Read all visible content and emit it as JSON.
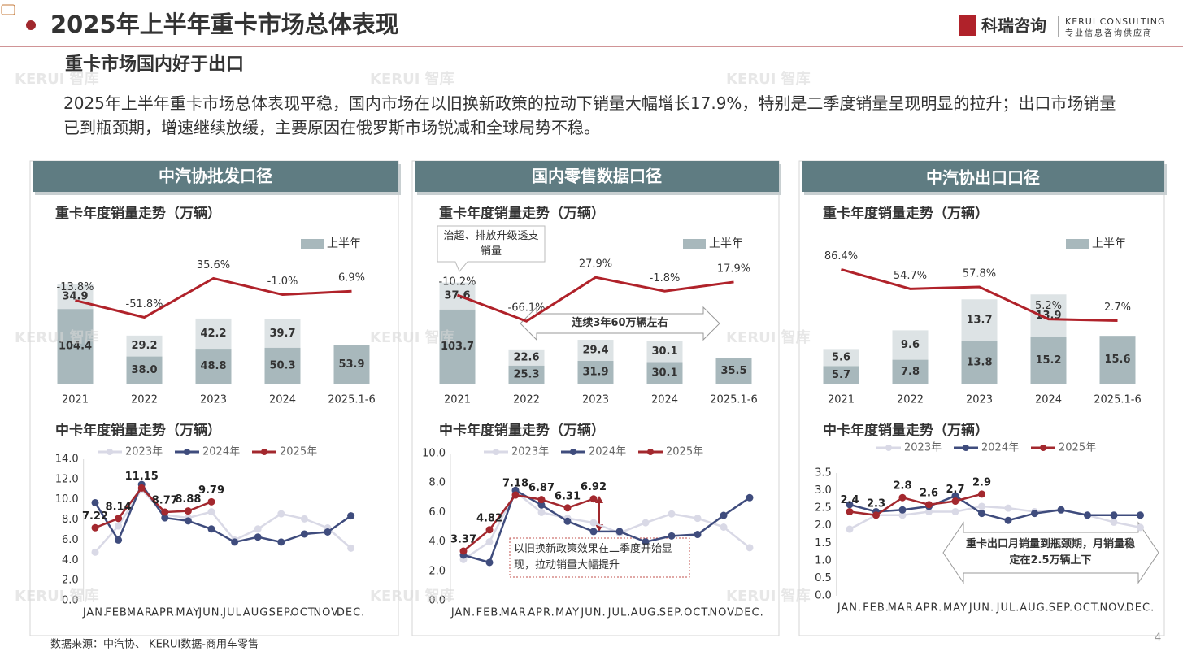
{
  "header": {
    "title": "2025年上半年重卡市场总体表现",
    "logo_cn": "科瑞咨询",
    "logo_en": "KERUI CONSULTING",
    "logo_tagline": "专业信息咨询供应商"
  },
  "subtitle": "重卡市场国内好于出口",
  "body": "2025年上半年重卡市场总体表现平稳，国内市场在以旧换新政策的拉动下销量大幅增长17.9%，特别是二季度销量呈现明显的拉升；出口市场销量已到瓶颈期，增速继续放缓，主要原因在俄罗斯市场锐减和全球局势不稳。",
  "panels": [
    "中汽协批发口径",
    "国内零售数据口径",
    "中汽协出口口径"
  ],
  "watermark": "KERUI 智库",
  "source": "数据来源：中汽协、 KERUI数据-商用车零售",
  "page_number": "4",
  "chart_data": [
    {
      "type": "bar",
      "stacked": true,
      "title": "重卡年度销量走势（万辆）",
      "categories": [
        "2021",
        "2022",
        "2023",
        "2024",
        "2025.1-6"
      ],
      "ylim": [
        0,
        150
      ],
      "y2lim": [
        -200,
        40
      ],
      "series": [
        {
          "name": "上半年",
          "color": "#a8b8bc",
          "values": [
            104.4,
            38.0,
            48.8,
            50.3,
            53.9
          ],
          "value_labels": [
            "104.4",
            "38.0",
            "48.8",
            "50.3",
            "53.9"
          ]
        },
        {
          "color": "#dde3e5",
          "values": [
            34.9,
            29.2,
            42.2,
            39.7,
            null
          ],
          "value_labels": [
            "34.9",
            "29.2",
            "42.2",
            "39.7",
            null
          ]
        },
        {
          "type": "line",
          "axis": "y2",
          "color": "#b0222a",
          "values": [
            -13.8,
            -51.8,
            35.6,
            -1.0,
            6.9
          ],
          "value_labels": [
            "-13.8%",
            "-51.8%",
            "35.6%",
            "-1.0%",
            "6.9%"
          ]
        }
      ]
    },
    {
      "type": "bar",
      "stacked": true,
      "title": "重卡年度销量走势（万辆）",
      "categories": [
        "2021",
        "2022",
        "2023",
        "2024",
        "2025.1-6"
      ],
      "ylim": [
        0,
        150
      ],
      "y2lim": [
        -200,
        30
      ],
      "series": [
        {
          "name": "上半年",
          "color": "#a8b8bc",
          "values": [
            103.7,
            25.3,
            31.9,
            30.1,
            35.5
          ],
          "value_labels": [
            "103.7",
            "25.3",
            "31.9",
            "30.1",
            "35.5"
          ]
        },
        {
          "color": "#dde3e5",
          "values": [
            37.6,
            22.6,
            29.4,
            30.1,
            null
          ],
          "value_labels": [
            "37.6",
            "22.6",
            "29.4",
            "30.1",
            null
          ]
        },
        {
          "type": "line",
          "axis": "y2",
          "color": "#b0222a",
          "values": [
            -10.2,
            -66.1,
            27.9,
            -1.8,
            17.9
          ],
          "value_labels": [
            "-10.2%",
            "-66.1%",
            "27.9%",
            "-1.8%",
            "17.9%"
          ]
        }
      ],
      "annotations": [
        "治超、排放升级透支销量",
        "连续3年60万辆左右"
      ]
    },
    {
      "type": "bar",
      "stacked": true,
      "title": "重卡年度销量走势（万辆）",
      "categories": [
        "2021",
        "2022",
        "2023",
        "2024",
        "2025.1-6"
      ],
      "ylim": [
        0,
        35
      ],
      "y2lim": [
        -100,
        75
      ],
      "series": [
        {
          "name": "上半年",
          "color": "#a8b8bc",
          "values": [
            5.7,
            7.8,
            13.8,
            15.2,
            15.6
          ],
          "value_labels": [
            "5.7",
            "7.8",
            "13.8",
            "15.2",
            "15.6"
          ]
        },
        {
          "color": "#dde3e5",
          "values": [
            5.6,
            9.6,
            13.7,
            13.9,
            null
          ],
          "value_labels": [
            "5.6",
            "9.6",
            "13.7",
            "13.9",
            null
          ]
        },
        {
          "type": "line",
          "axis": "y2",
          "color": "#b0222a",
          "values": [
            86.4,
            54.7,
            57.8,
            5.2,
            2.7
          ],
          "value_labels": [
            "86.4%",
            "54.7%",
            "57.8%",
            "5.2%",
            "2.7%"
          ]
        }
      ]
    },
    {
      "type": "line",
      "title": "中卡年度销量走势（万辆）",
      "categories": [
        "JAN.",
        "FEB.",
        "MAR.",
        "APR.",
        "MAY",
        "JUN.",
        "JUL.",
        "AUG.",
        "SEP.",
        "OCT.",
        "NOV.",
        "DEC."
      ],
      "ylim": [
        0,
        14
      ],
      "yticks": [
        {
          "value": 0,
          "label": "0.0"
        },
        {
          "value": 2,
          "label": "2.0"
        },
        {
          "value": 4,
          "label": "4.0"
        },
        {
          "value": 6,
          "label": "6.0"
        },
        {
          "value": 8,
          "label": "8.0"
        },
        {
          "value": 10,
          "label": "10.0"
        },
        {
          "value": 12,
          "label": "12.0"
        },
        {
          "value": 14,
          "label": "14.0"
        }
      ],
      "legend": "top",
      "series": [
        {
          "name": "2023年",
          "color": "#d9d9e6",
          "values": [
            4.8,
            7.4,
            11.0,
            8.5,
            8.2,
            8.8,
            6.0,
            7.1,
            8.6,
            8.1,
            7.2,
            5.2
          ]
        },
        {
          "name": "2024年",
          "color": "#3f4c7d",
          "values": [
            9.7,
            6.0,
            11.5,
            8.2,
            7.9,
            7.1,
            5.8,
            6.3,
            5.8,
            6.6,
            6.8,
            8.4
          ]
        },
        {
          "name": "2025年",
          "color": "#a3282e",
          "data_labels": true,
          "values": [
            7.22,
            8.14,
            11.15,
            8.77,
            8.88,
            9.79,
            null,
            null,
            null,
            null,
            null,
            null
          ]
        }
      ]
    },
    {
      "type": "line",
      "title": "中卡年度销量走势（万辆）",
      "categories": [
        "JAN.",
        "FEB.",
        "MAR.",
        "APR.",
        "MAY",
        "JUN.",
        "JUL.",
        "AUG.",
        "SEP.",
        "OCT.",
        "NOV.",
        "DEC."
      ],
      "ylim": [
        0,
        10
      ],
      "yticks": [
        {
          "value": 0,
          "label": "0.0"
        },
        {
          "value": 2,
          "label": "2.0"
        },
        {
          "value": 4,
          "label": "4.0"
        },
        {
          "value": 6,
          "label": "6.0"
        },
        {
          "value": 8,
          "label": "8.0"
        },
        {
          "value": 10,
          "label": "10.0"
        }
      ],
      "legend": "top",
      "series": [
        {
          "name": "2023年",
          "color": "#d9d9e6",
          "values": [
            2.8,
            4.0,
            7.4,
            6.0,
            5.6,
            5.3,
            4.6,
            5.3,
            5.9,
            5.6,
            5.0,
            3.6
          ]
        },
        {
          "name": "2024年",
          "color": "#3f4c7d",
          "values": [
            3.1,
            2.6,
            7.5,
            6.5,
            5.4,
            4.7,
            4.7,
            4.0,
            4.4,
            4.5,
            5.8,
            7.0
          ]
        },
        {
          "name": "2025年",
          "color": "#a3282e",
          "data_labels": true,
          "values": [
            3.37,
            4.82,
            7.18,
            6.87,
            6.31,
            6.92,
            null,
            null,
            null,
            null,
            null,
            null
          ]
        }
      ],
      "annotations": [
        "以旧换新政策效果在二季度开始显现，拉动销量大幅提升"
      ]
    },
    {
      "type": "line",
      "title": "中卡年度销量走势（万辆）",
      "categories": [
        "JAN.",
        "FEB.",
        "MAR.",
        "APR.",
        "MAY",
        "JUN.",
        "JUL.",
        "AUG.",
        "SEP.",
        "OCT.",
        "NOV.",
        "DEC."
      ],
      "ylim": [
        0,
        3.5
      ],
      "yticks": [
        {
          "value": 0,
          "label": "0.0"
        },
        0.5,
        {
          "value": 1,
          "label": "1.0"
        },
        1.5,
        {
          "value": 2,
          "label": "2.0"
        },
        2.5,
        {
          "value": 3,
          "label": "3.0"
        },
        3.5
      ],
      "legend": "top",
      "series": [
        {
          "name": "2023年",
          "color": "#d9d9e6",
          "values": [
            1.9,
            2.3,
            2.3,
            2.4,
            2.4,
            2.55,
            2.5,
            2.4,
            2.45,
            2.3,
            2.1,
            1.95
          ]
        },
        {
          "name": "2024年",
          "color": "#3f4c7d",
          "values": [
            2.6,
            2.4,
            2.45,
            2.55,
            2.85,
            2.35,
            2.15,
            2.35,
            2.45,
            2.3,
            2.3,
            2.3
          ]
        },
        {
          "name": "2025年",
          "color": "#a3282e",
          "data_labels": true,
          "values": [
            2.4,
            2.3,
            2.8,
            2.6,
            2.7,
            2.9,
            null,
            null,
            null,
            null,
            null,
            null
          ]
        }
      ],
      "annotations": [
        "重卡出口月销量到瓶颈期，月销量稳定在2.5万辆上下"
      ]
    }
  ]
}
